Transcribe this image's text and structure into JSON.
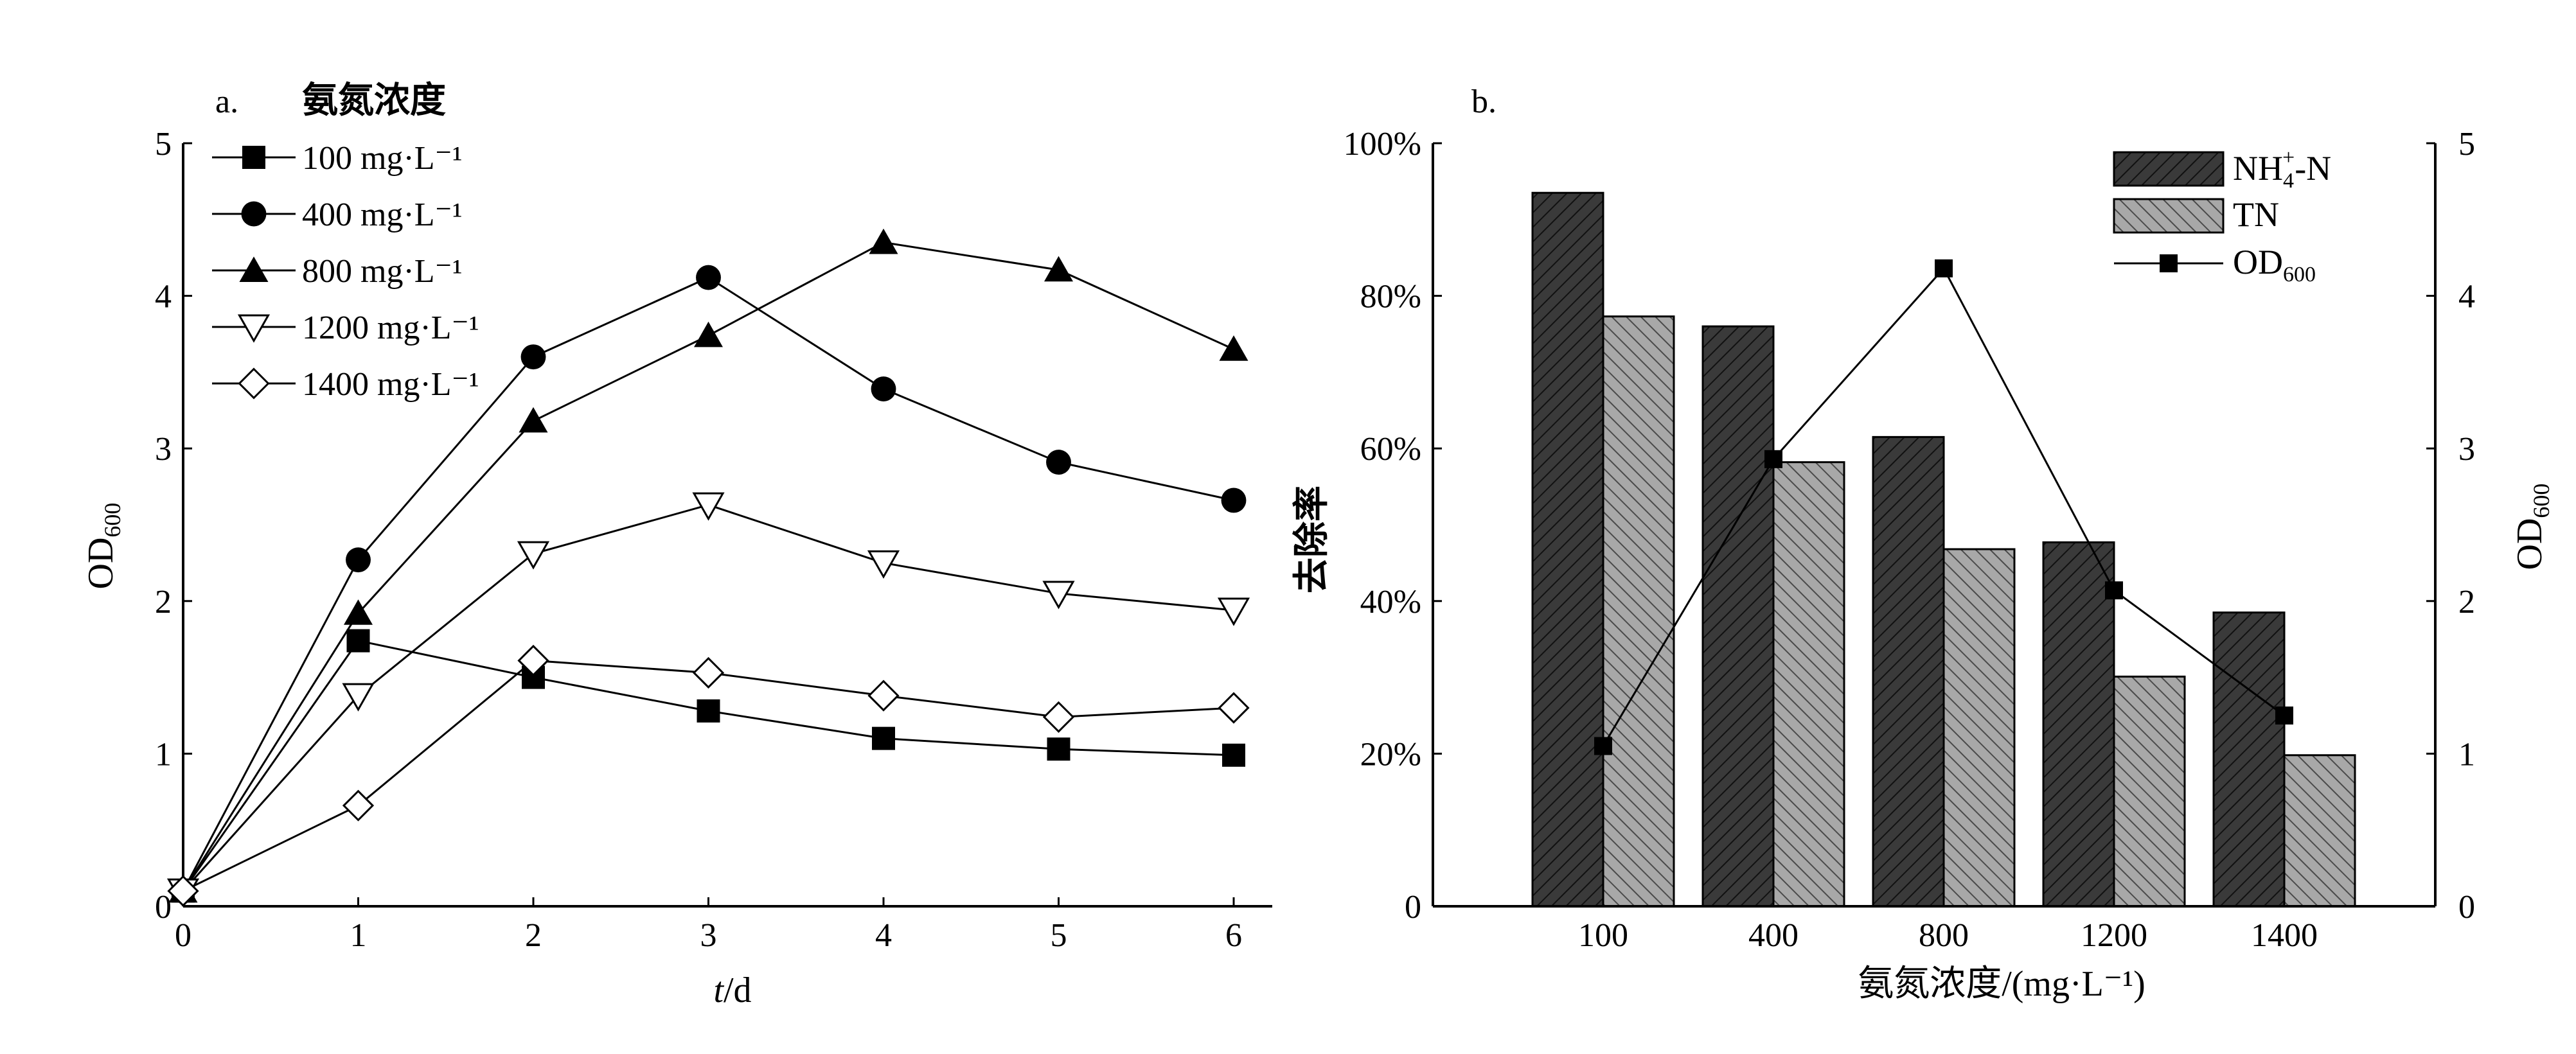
{
  "chart_data": [
    {
      "panel_label": "a.",
      "type": "line",
      "xlabel_italic": "t",
      "xlabel_unit": "/d",
      "ylabel_main": "OD",
      "ylabel_sub": "600",
      "legend_title": "氨氮浓度",
      "legend_placement": "top-left",
      "xlim": [
        0,
        6
      ],
      "ylim": [
        0,
        5
      ],
      "x_ticks": [
        0,
        1,
        2,
        3,
        4,
        5,
        6
      ],
      "y_ticks": [
        0,
        1,
        2,
        3,
        4,
        5
      ],
      "x": [
        0,
        1,
        2,
        3,
        4,
        5,
        6
      ],
      "grid": false,
      "series": [
        {
          "name": "100  mg·L⁻¹",
          "marker": "square-filled",
          "values": [
            0.1,
            1.74,
            1.5,
            1.28,
            1.1,
            1.03,
            0.99
          ]
        },
        {
          "name": "400  mg·L⁻¹",
          "marker": "circle-filled",
          "values": [
            0.1,
            2.27,
            3.6,
            4.12,
            3.39,
            2.91,
            2.66
          ]
        },
        {
          "name": "800  mg·L⁻¹",
          "marker": "triangle-up-filled",
          "values": [
            0.1,
            1.92,
            3.18,
            3.74,
            4.35,
            4.17,
            3.65
          ]
        },
        {
          "name": "1200  mg·L⁻¹",
          "marker": "triangle-down-open",
          "values": [
            0.1,
            1.38,
            2.31,
            2.63,
            2.25,
            2.05,
            1.94
          ]
        },
        {
          "name": "1400  mg·L⁻¹",
          "marker": "diamond-open",
          "values": [
            0.1,
            0.66,
            1.61,
            1.53,
            1.38,
            1.24,
            1.3
          ]
        }
      ]
    },
    {
      "panel_label": "b.",
      "type": "bar",
      "xlabel": "氨氮浓度/(mg·L⁻¹)",
      "ylabel_left": "去除率",
      "ylabel_right_main": "OD",
      "ylabel_right_sub": "600",
      "legend_placement": "top-right",
      "categories": [
        "100",
        "400",
        "800",
        "1200",
        "1400"
      ],
      "ylim_left": [
        0,
        100
      ],
      "ylim_right": [
        0,
        5
      ],
      "y_ticks_left": [
        "0",
        "20%",
        "40%",
        "60%",
        "80%",
        "100%"
      ],
      "y_ticks_right": [
        "0",
        "1",
        "2",
        "3",
        "4",
        "5"
      ],
      "grid": false,
      "legend": {
        "nh4_main": "NH",
        "nh4_sub": "4",
        "nh4_sup": "+",
        "nh4_tail": "-N",
        "tn": "TN",
        "od_main": "OD",
        "od_sub": "600"
      },
      "series": [
        {
          "key": "NH4",
          "kind": "bar",
          "values": [
            93.5,
            76,
            61.5,
            47.7,
            38.5
          ],
          "color": "#333333"
        },
        {
          "key": "TN",
          "kind": "bar",
          "values": [
            77.3,
            58.2,
            46.8,
            30.1,
            19.8
          ],
          "color": "#999999"
        },
        {
          "key": "OD600",
          "kind": "line",
          "axis": "right",
          "values": [
            1.05,
            2.93,
            4.18,
            2.07,
            1.25
          ],
          "color": "#000000"
        }
      ]
    }
  ]
}
